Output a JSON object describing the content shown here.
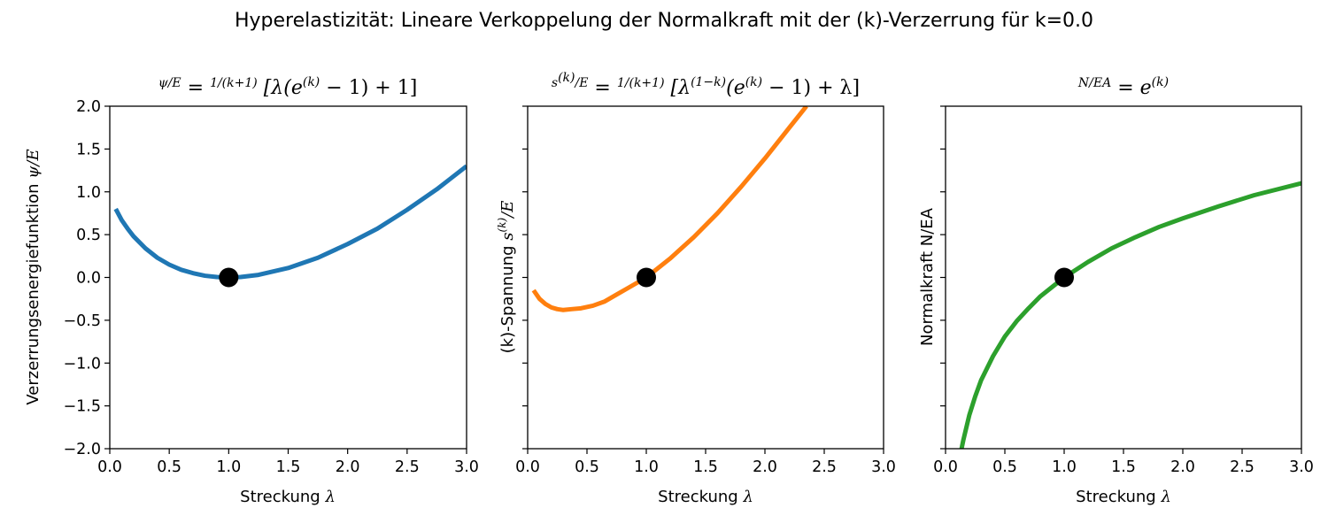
{
  "figure": {
    "suptitle": "Hyperelastizität: Lineare Verkoppelung der Normalkraft mit der (k)-Verzerrung für k=0.0"
  },
  "colors": {
    "panel_1": "#1f77b4",
    "panel_2": "#ff7f0e",
    "panel_3": "#2ca02c",
    "marker": "#000000",
    "axes": "#000000"
  },
  "panels": [
    {
      "ylabel_text": "Verzerrungsenergiefunktion ",
      "ylabel_math": "ψ/E",
      "xlabel_text": "Streckung ",
      "xlabel_math": "λ"
    },
    {
      "ylabel_text": "(k)-Spannung ",
      "ylabel_math": "s",
      "ylabel_sup": "(k)",
      "ylabel_tail": "/E",
      "xlabel_text": "Streckung ",
      "xlabel_math": "λ"
    },
    {
      "ylabel_text": "Normalkraft N/EA",
      "xlabel_text": "Streckung ",
      "xlabel_math": "λ"
    }
  ],
  "chart_data": [
    {
      "type": "line",
      "title": "ψ/E = 1/(k+1) [λ(e^(k) − 1) + 1]",
      "xlabel": "Streckung λ",
      "ylabel": "Verzerrungsenergiefunktion ψ/E",
      "xlim": [
        0.0,
        3.0
      ],
      "ylim": [
        -2.0,
        2.0
      ],
      "xticks": [
        "0.0",
        "0.5",
        "1.0",
        "1.5",
        "2.0",
        "2.5",
        "3.0"
      ],
      "yticks": [
        "2.0",
        "1.5",
        "1.0",
        "0.5",
        "0.0",
        "−0.5",
        "−1.0",
        "−1.5",
        "−2.0"
      ],
      "grid": false,
      "series": [
        {
          "color": "#1f77b4",
          "x": [
            0.05,
            0.1,
            0.15,
            0.2,
            0.3,
            0.4,
            0.5,
            0.6,
            0.7,
            0.8,
            0.9,
            1.0,
            1.1,
            1.25,
            1.5,
            1.75,
            2.0,
            2.25,
            2.5,
            2.75,
            3.0
          ],
          "y": [
            0.8,
            0.67,
            0.57,
            0.48,
            0.34,
            0.23,
            0.15,
            0.09,
            0.05,
            0.02,
            0.005,
            0.0,
            0.005,
            0.03,
            0.11,
            0.23,
            0.39,
            0.57,
            0.79,
            1.03,
            1.3
          ]
        }
      ],
      "markers": [
        {
          "x": 1.0,
          "y": 0.0,
          "color": "#000000"
        }
      ]
    },
    {
      "type": "line",
      "title": "s^(k)/E = 1/(k+1) [λ^(1−k)(e^(k) − 1) + λ]",
      "xlabel": "Streckung λ",
      "ylabel": "(k)-Spannung s^(k)/E",
      "xlim": [
        0.0,
        3.0
      ],
      "ylim": [
        -2.0,
        2.0
      ],
      "xticks": [
        "0.0",
        "0.5",
        "1.0",
        "1.5",
        "2.0",
        "2.5",
        "3.0"
      ],
      "grid": false,
      "series": [
        {
          "color": "#ff7f0e",
          "x": [
            0.05,
            0.1,
            0.15,
            0.2,
            0.25,
            0.3,
            0.37,
            0.45,
            0.55,
            0.65,
            0.75,
            0.85,
            1.0,
            1.2,
            1.4,
            1.6,
            1.8,
            2.0,
            2.2,
            2.35
          ],
          "y": [
            -0.15,
            -0.25,
            -0.31,
            -0.35,
            -0.37,
            -0.38,
            -0.37,
            -0.36,
            -0.33,
            -0.28,
            -0.2,
            -0.12,
            0.0,
            0.22,
            0.47,
            0.75,
            1.06,
            1.39,
            1.74,
            2.0
          ]
        }
      ],
      "markers": [
        {
          "x": 1.0,
          "y": 0.0,
          "color": "#000000"
        }
      ]
    },
    {
      "type": "line",
      "title": "N/EA = e^(k)",
      "xlabel": "Streckung λ",
      "ylabel": "Normalkraft N/EA",
      "xlim": [
        0.0,
        3.0
      ],
      "ylim": [
        -2.0,
        2.0
      ],
      "xticks": [
        "0.0",
        "0.5",
        "1.0",
        "1.5",
        "2.0",
        "2.5",
        "3.0"
      ],
      "grid": false,
      "series": [
        {
          "color": "#2ca02c",
          "x": [
            0.135,
            0.15,
            0.2,
            0.25,
            0.3,
            0.4,
            0.5,
            0.6,
            0.7,
            0.8,
            0.9,
            1.0,
            1.2,
            1.4,
            1.6,
            1.8,
            2.0,
            2.3,
            2.6,
            3.0
          ],
          "y": [
            -2.0,
            -1.9,
            -1.61,
            -1.39,
            -1.2,
            -0.92,
            -0.69,
            -0.51,
            -0.36,
            -0.22,
            -0.11,
            0.0,
            0.18,
            0.34,
            0.47,
            0.59,
            0.69,
            0.83,
            0.96,
            1.1
          ]
        }
      ],
      "markers": [
        {
          "x": 1.0,
          "y": 0.0,
          "color": "#000000"
        }
      ]
    }
  ]
}
